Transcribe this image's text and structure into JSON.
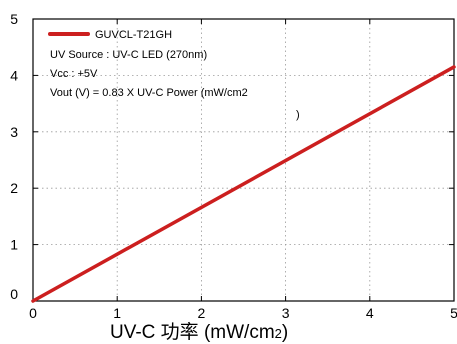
{
  "chart_data": {
    "type": "line",
    "xlabel": "UV-C 功率 (mW/cm",
    "xlabel_subscript": "2",
    "xlabel_close": ")",
    "ylabel": "",
    "xlim": [
      0,
      5
    ],
    "ylim": [
      0,
      5
    ],
    "x_ticks": [
      0,
      1,
      2,
      3,
      4,
      5
    ],
    "y_ticks": [
      0,
      1,
      2,
      3,
      4,
      5
    ],
    "grid": true,
    "legend_position": "top-left",
    "series": [
      {
        "name": "GUVCL-T21GH",
        "color": "#cc1f1f",
        "x": [
          0,
          5
        ],
        "y": [
          0,
          4.15
        ]
      }
    ],
    "annotations": [
      "UV Source : UV-C LED (270nm)",
      "Vcc : +5V",
      "Vout (V) = 0.83 X UV-C Power (mW/cm2",
      ")"
    ]
  }
}
